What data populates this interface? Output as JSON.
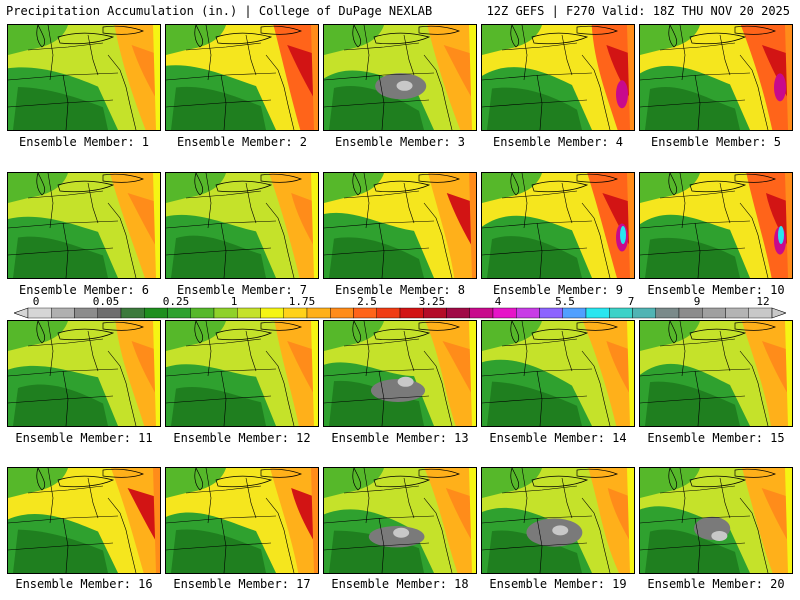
{
  "header": {
    "title_left": "Precipitation Accumulation (in.) | College of DuPage NEXLAB",
    "title_right": "12Z GEFS | F270 Valid: 18Z THU NOV 20 2025"
  },
  "colorbar": {
    "tick_labels": [
      "0",
      "0.05",
      "0.25",
      "1",
      "1.75",
      "2.5",
      "3.25",
      "4",
      "5.5",
      "7",
      "9",
      "12"
    ],
    "colors": [
      "#d6d6d6",
      "#b0b0b0",
      "#8c8c8c",
      "#6e6e6e",
      "#3c7a3c",
      "#1f8f1f",
      "#2fa12f",
      "#56b82a",
      "#8fd12a",
      "#c5e22a",
      "#f5f514",
      "#ffd21a",
      "#ffb01a",
      "#ff8c1a",
      "#ff641a",
      "#f03c14",
      "#d21414",
      "#b40c28",
      "#a00a46",
      "#c80a8c",
      "#e614c8",
      "#c83ce6",
      "#8c64ff",
      "#50a0ff",
      "#28e6f0",
      "#3cd2c8",
      "#50b4b4",
      "#7a8a8a",
      "#8c8c8c",
      "#a0a0a0",
      "#b4b4b4",
      "#c8c8c8"
    ]
  },
  "members": [
    {
      "caption": "Ensemble Member: 1",
      "intensity": 0.55
    },
    {
      "caption": "Ensemble Member: 2",
      "intensity": 0.75
    },
    {
      "caption": "Ensemble Member: 3",
      "intensity": 0.35
    },
    {
      "caption": "Ensemble Member: 4",
      "intensity": 0.85
    },
    {
      "caption": "Ensemble Member: 5",
      "intensity": 0.8
    },
    {
      "caption": "Ensemble Member: 6",
      "intensity": 0.6
    },
    {
      "caption": "Ensemble Member: 7",
      "intensity": 0.55
    },
    {
      "caption": "Ensemble Member: 8",
      "intensity": 0.7
    },
    {
      "caption": "Ensemble Member: 9",
      "intensity": 0.9
    },
    {
      "caption": "Ensemble Member: 10",
      "intensity": 0.92
    },
    {
      "caption": "Ensemble Member: 11",
      "intensity": 0.6
    },
    {
      "caption": "Ensemble Member: 12",
      "intensity": 0.5
    },
    {
      "caption": "Ensemble Member: 13",
      "intensity": 0.3
    },
    {
      "caption": "Ensemble Member: 14",
      "intensity": 0.45
    },
    {
      "caption": "Ensemble Member: 15",
      "intensity": 0.5
    },
    {
      "caption": "Ensemble Member: 16",
      "intensity": 0.65
    },
    {
      "caption": "Ensemble Member: 17",
      "intensity": 0.7
    },
    {
      "caption": "Ensemble Member: 18",
      "intensity": 0.35
    },
    {
      "caption": "Ensemble Member: 19",
      "intensity": 0.4
    },
    {
      "caption": "Ensemble Member: 20",
      "intensity": 0.2
    }
  ]
}
